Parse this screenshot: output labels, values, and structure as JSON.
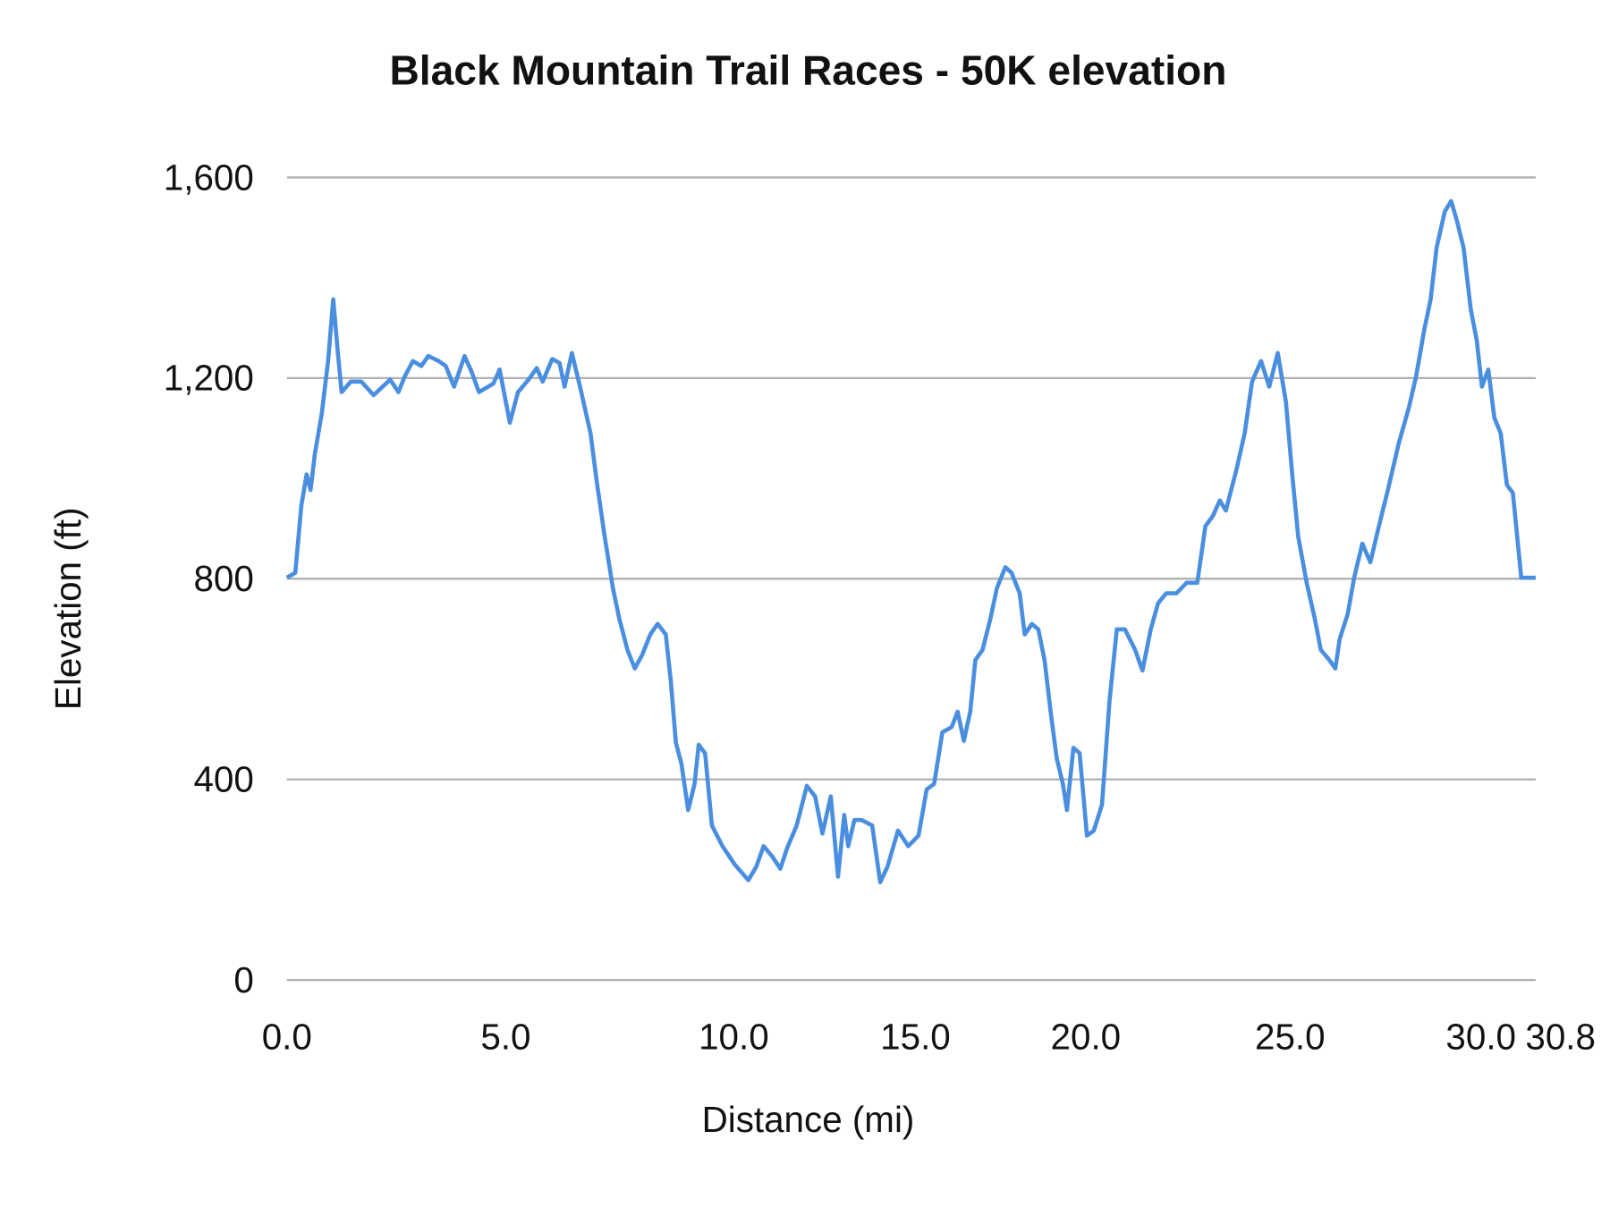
{
  "chart_data": {
    "type": "line",
    "title": "Black Mountain Trail Races - 50K elevation",
    "xlabel": "Distance (mi)",
    "ylabel": "Elevation (ft)",
    "ylim": [
      0,
      1600
    ],
    "yticks": [
      "0",
      "400",
      "800",
      "1,200",
      "1,600"
    ],
    "ytick_values": [
      0,
      400,
      800,
      1200,
      1600
    ],
    "xticks": [
      "0.0",
      "5.0",
      "10.0",
      "15.0",
      "20.0",
      "25.0",
      "30.0",
      "30.8"
    ],
    "xtick_values": [
      0,
      5,
      10,
      15,
      20,
      25,
      30,
      30.8
    ],
    "grid": "horizontal",
    "line_color": "#4a8ee0",
    "series": [
      {
        "x": [
          0,
          0.19,
          0.33,
          0.45,
          0.54,
          0.64,
          0.8,
          0.94,
          1.06,
          1.16,
          1.25,
          1.46,
          1.7,
          1.98,
          2.36,
          2.55,
          2.69,
          2.88,
          3.07,
          3.23,
          3.47,
          3.63,
          3.82,
          4.06,
          4.22,
          4.39,
          4.72,
          4.86,
          5.09,
          5.27,
          5.5,
          5.68,
          5.81,
          6.02,
          6.18,
          6.29,
          6.45,
          6.63,
          6.86,
          6.99,
          7.17,
          7.35,
          7.49,
          7.67,
          7.83,
          7.99,
          8.17,
          8.33,
          8.51,
          8.62,
          8.73,
          8.85,
          9.0,
          9.14,
          9.23,
          9.37,
          9.52,
          9.75,
          10.03,
          10.4,
          10.62,
          10.82,
          11.05,
          11.28,
          11.47,
          11.73,
          12.01,
          12.24,
          12.44,
          12.67,
          12.87,
          13.04,
          13.15,
          13.32,
          13.52,
          13.81,
          14.03,
          14.23,
          14.52,
          14.8,
          15.09,
          15.33,
          15.55,
          15.79,
          16.06,
          16.24,
          16.42,
          16.61,
          16.76,
          16.97,
          17.2,
          17.39,
          17.64,
          17.82,
          18.06,
          18.21,
          18.42,
          18.61,
          18.79,
          18.97,
          19.15,
          19.33,
          19.45,
          19.64,
          19.82,
          20.03,
          20.2,
          20.4,
          20.58,
          20.76,
          20.96,
          21.21,
          21.39,
          21.59,
          21.77,
          21.97,
          22.22,
          22.47,
          22.73,
          22.93,
          23.11,
          23.28,
          23.43,
          23.69,
          23.89,
          24.07,
          24.29,
          24.49,
          24.7,
          24.9,
          25.05,
          25.19,
          25.39,
          25.58,
          25.72,
          25.92,
          26.06,
          26.16,
          26.35,
          26.5,
          26.69,
          26.88,
          27.08,
          27.29,
          27.54,
          27.78,
          27.95,
          28.14,
          28.29,
          28.43,
          28.62,
          28.77,
          28.91,
          29.06,
          29.23,
          29.37,
          29.49,
          29.64,
          29.78,
          29.93,
          30.08,
          30.23,
          30.44,
          30.8
        ],
        "y": [
          802,
          812,
          946,
          1008,
          977,
          1049,
          1131,
          1234,
          1357,
          1254,
          1172,
          1193,
          1193,
          1166,
          1197,
          1172,
          1203,
          1234,
          1224,
          1244,
          1234,
          1224,
          1183,
          1244,
          1213,
          1172,
          1189,
          1217,
          1111,
          1172,
          1197,
          1220,
          1193,
          1238,
          1230,
          1183,
          1250,
          1183,
          1090,
          997,
          884,
          781,
          720,
          658,
          621,
          648,
          689,
          710,
          689,
          596,
          473,
          432,
          339,
          391,
          469,
          452,
          308,
          267,
          230,
          199,
          226,
          267,
          247,
          222,
          263,
          308,
          387,
          366,
          292,
          366,
          206,
          329,
          267,
          319,
          319,
          308,
          195,
          226,
          298,
          267,
          288,
          380,
          391,
          494,
          504,
          535,
          477,
          535,
          638,
          658,
          720,
          781,
          823,
          812,
          771,
          689,
          710,
          699,
          638,
          535,
          442,
          391,
          339,
          463,
          452,
          288,
          298,
          350,
          555,
          699,
          699,
          658,
          617,
          699,
          751,
          771,
          771,
          792,
          792,
          905,
          925,
          956,
          936,
          1018,
          1090,
          1193,
          1234,
          1183,
          1250,
          1152,
          1008,
          884,
          792,
          720,
          658,
          638,
          621,
          679,
          730,
          802,
          870,
          833,
          905,
          977,
          1069,
          1141,
          1203,
          1296,
          1357,
          1460,
          1532,
          1553,
          1512,
          1460,
          1337,
          1275,
          1183,
          1217,
          1121,
          1090,
          987,
          971,
          802,
          802
        ]
      }
    ]
  }
}
